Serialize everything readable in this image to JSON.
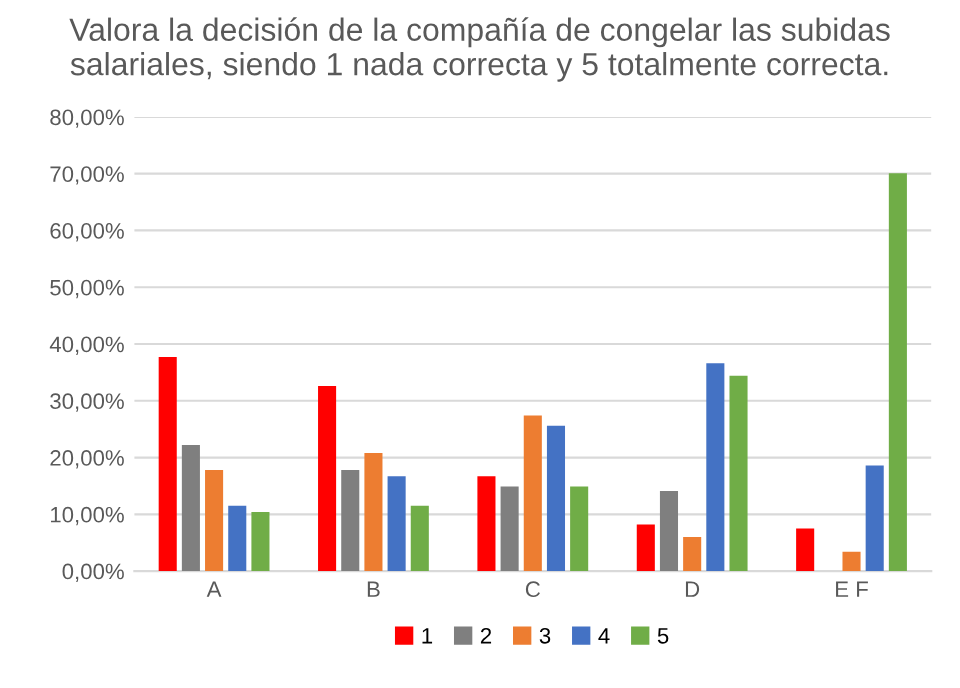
{
  "chart_data": {
    "type": "bar",
    "title": "Valora la decisión de la compañía de congelar las subidas salariales, siendo 1 nada correcta y 5 totalmente correcta.",
    "categories": [
      "A",
      "B",
      "C",
      "D",
      "E F"
    ],
    "series": [
      {
        "name": "1",
        "color": "#ff0000",
        "values": [
          37.7,
          32.6,
          16.7,
          8.2,
          7.5
        ]
      },
      {
        "name": "2",
        "color": "#7f7f7f",
        "values": [
          22.2,
          17.8,
          14.9,
          14.1,
          0
        ]
      },
      {
        "name": "3",
        "color": "#ed7d31",
        "values": [
          17.8,
          20.8,
          27.4,
          6.0,
          3.4
        ]
      },
      {
        "name": "4",
        "color": "#4472c4",
        "values": [
          11.5,
          16.7,
          25.6,
          36.6,
          18.6
        ]
      },
      {
        "name": "5",
        "color": "#70ad47",
        "values": [
          10.4,
          11.5,
          14.9,
          34.4,
          70.1
        ]
      }
    ],
    "ylim": [
      0,
      80
    ],
    "yticks": [
      {
        "value": 0,
        "label": "0,00%"
      },
      {
        "value": 10,
        "label": "10,00%"
      },
      {
        "value": 20,
        "label": "20,00%"
      },
      {
        "value": 30,
        "label": "30,00%"
      },
      {
        "value": 40,
        "label": "40,00%"
      },
      {
        "value": 50,
        "label": "50,00%"
      },
      {
        "value": 60,
        "label": "60,00%"
      },
      {
        "value": 70,
        "label": "70,00%"
      },
      {
        "value": 80,
        "label": "80,00%"
      }
    ],
    "grid": "y",
    "legend": "bottom"
  }
}
